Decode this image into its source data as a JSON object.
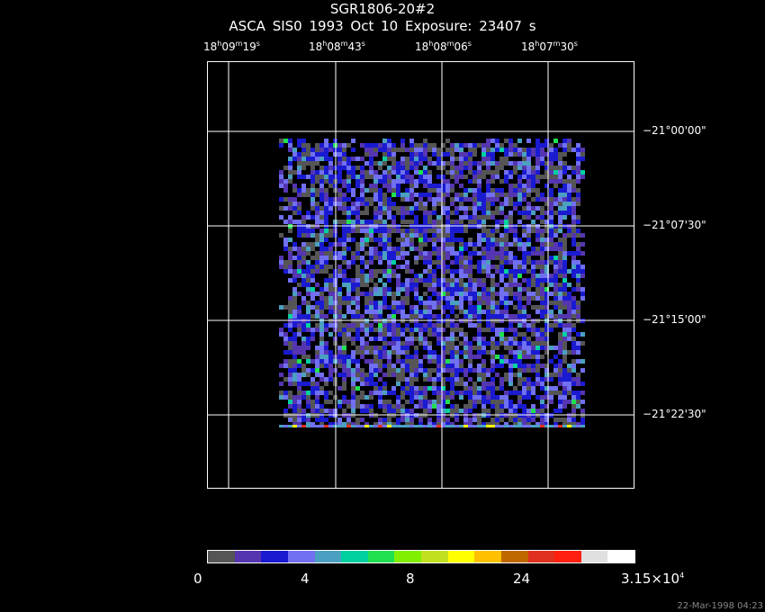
{
  "header": {
    "title": "SGR1806-20#2",
    "subtitle": "ASCA SIS0   1993 Oct 10    Exposure: 23407 s"
  },
  "ra_labels": [
    {
      "h": "18",
      "m": "09",
      "s": "19"
    },
    {
      "h": "18",
      "m": "08",
      "s": "43"
    },
    {
      "h": "18",
      "m": "08",
      "s": "06"
    },
    {
      "h": "18",
      "m": "07",
      "s": "30"
    }
  ],
  "dec_labels": [
    "−21°00'00\"",
    "−21°07'30\"",
    "−21°15'00\"",
    "−21°22'30\""
  ],
  "colorbar": {
    "colors": [
      "#555555",
      "#5535b0",
      "#1a1ad0",
      "#7070f0",
      "#4aa0c0",
      "#00d0a0",
      "#20e050",
      "#80f000",
      "#c0e020",
      "#ffff00",
      "#ffc000",
      "#c06800",
      "#e03020",
      "#ff2010",
      "#e0e0e0",
      "#ffffff"
    ],
    "labels": [
      "0",
      "4",
      "8",
      "24",
      "3.15×10"
    ],
    "max_exponent": "4"
  },
  "timestamp": "22-Mar-1998 04:23"
}
